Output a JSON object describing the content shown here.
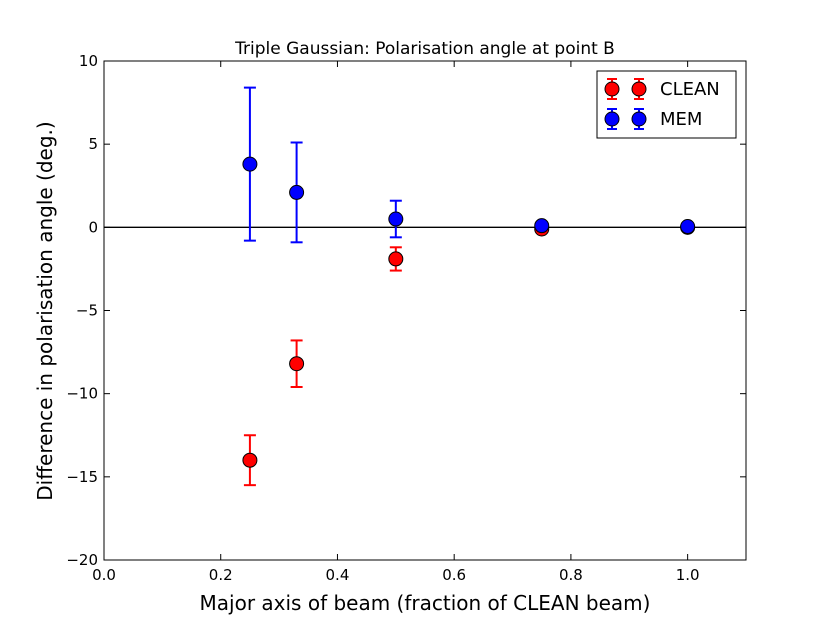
{
  "chart_data": {
    "type": "scatter",
    "title": "Triple Gaussian: Polarisation angle at point B",
    "xlabel": "Major axis of beam (fraction of CLEAN beam)",
    "ylabel": "Difference in polarisation angle (deg.)",
    "xlim": [
      0.0,
      1.1
    ],
    "ylim": [
      -20,
      10
    ],
    "xticks": [
      0.0,
      0.2,
      0.4,
      0.6,
      0.8,
      1.0
    ],
    "xtick_labels": [
      "0.0",
      "0.2",
      "0.4",
      "0.6",
      "0.8",
      "1.0"
    ],
    "yticks": [
      10,
      5,
      0,
      -5,
      -10,
      -15,
      -20
    ],
    "ytick_labels": [
      "10",
      "5",
      "0",
      "−5",
      "−10",
      "−15",
      "−20"
    ],
    "grid": false,
    "legend_position": "top-right",
    "reference_line_y": 0,
    "series": [
      {
        "name": "CLEAN",
        "color": "#ff0000",
        "points": [
          {
            "x": 0.25,
            "y": -14.0,
            "err": 1.5
          },
          {
            "x": 0.33,
            "y": -8.2,
            "err": 1.4
          },
          {
            "x": 0.5,
            "y": -1.9,
            "err": 0.7
          },
          {
            "x": 0.75,
            "y": -0.1,
            "err": 0.2
          },
          {
            "x": 1.0,
            "y": 0.0,
            "err": 0.0
          }
        ]
      },
      {
        "name": "MEM",
        "color": "#0000ff",
        "points": [
          {
            "x": 0.25,
            "y": 3.8,
            "err": 4.6
          },
          {
            "x": 0.33,
            "y": 2.1,
            "err": 3.0
          },
          {
            "x": 0.5,
            "y": 0.5,
            "err": 1.1
          },
          {
            "x": 0.75,
            "y": 0.1,
            "err": 0.2
          },
          {
            "x": 1.0,
            "y": 0.05,
            "err": 0.0
          }
        ]
      }
    ]
  }
}
